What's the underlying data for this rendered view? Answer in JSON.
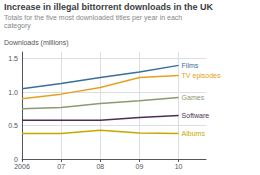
{
  "chart_data": {
    "type": "line",
    "title": "Increase in illegal bittorrent downloads in the UK",
    "subtitle": "Totals for the five most downloaded titles per year in each category",
    "ylabel": "Downloads (millions)",
    "x": [
      2006,
      2007,
      2008,
      2009,
      2010
    ],
    "series": [
      {
        "name": "Films",
        "color": "#3a6e9c",
        "values": [
          1.05,
          1.13,
          1.22,
          1.3,
          1.4
        ]
      },
      {
        "name": "TV episodes",
        "color": "#e8a020",
        "values": [
          0.9,
          0.97,
          1.07,
          1.22,
          1.25
        ]
      },
      {
        "name": "Games",
        "color": "#8a9a72",
        "values": [
          0.75,
          0.77,
          0.83,
          0.87,
          0.92
        ]
      },
      {
        "name": "Software",
        "color": "#4a3050",
        "values": [
          0.58,
          0.58,
          0.58,
          0.62,
          0.65
        ]
      },
      {
        "name": "Albums",
        "color": "#c8a800",
        "values": [
          0.38,
          0.38,
          0.43,
          0.39,
          0.38
        ]
      }
    ],
    "xlim": [
      2006,
      2010.7
    ],
    "xticks": [
      2006,
      {
        "value": 2007,
        "label": "07"
      },
      {
        "value": 2008,
        "label": "08"
      },
      {
        "value": 2009,
        "label": "09"
      },
      {
        "value": 2010,
        "label": "10"
      }
    ],
    "ylim": [
      0,
      1.6
    ],
    "yticks": [
      0,
      0.5,
      {
        "value": 1,
        "label": "1.0"
      },
      1.5
    ],
    "grid": true
  }
}
